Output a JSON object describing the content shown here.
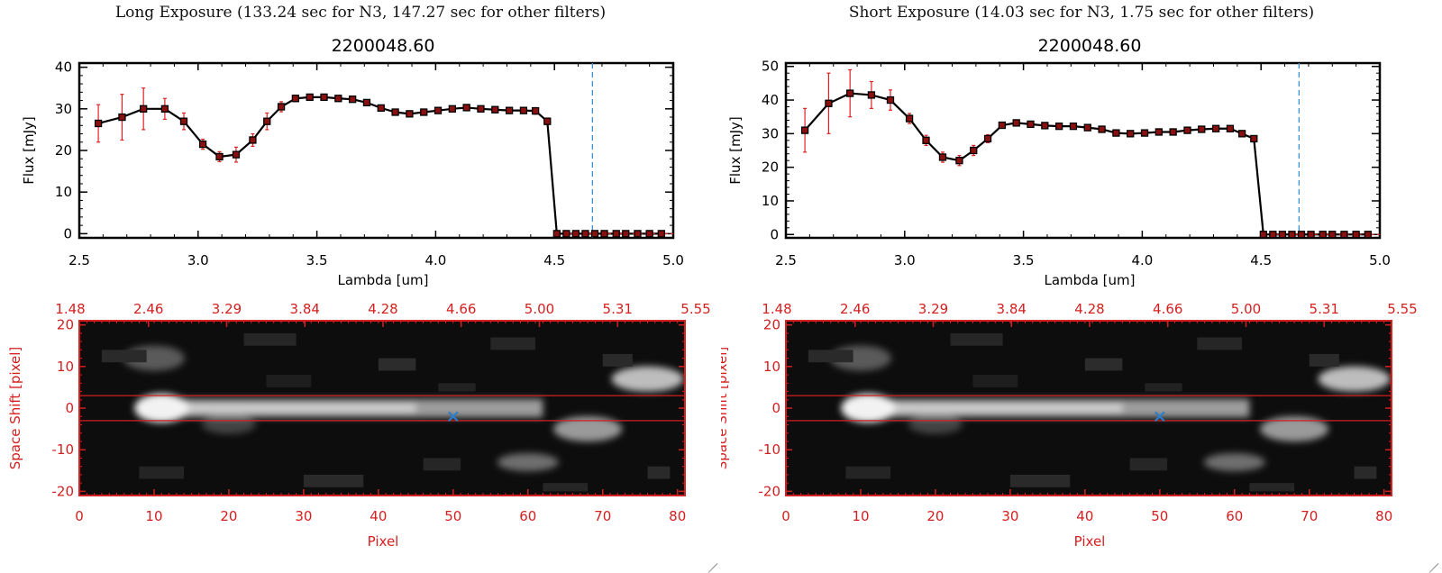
{
  "panels": [
    {
      "id": "long",
      "window_title": "Long Exposure (133.24 sec for N3, 147.27 sec for other filters)",
      "spectrum": {
        "title": "2200048.60",
        "xlabel": "Lambda [um]",
        "ylabel": "Flux [mJy]",
        "xlim": [
          2.5,
          5.0
        ],
        "ylim": [
          -1,
          41
        ],
        "xticks": [
          "2.5",
          "3.0",
          "3.5",
          "4.0",
          "4.5",
          "5.0"
        ],
        "yticks": [
          "0",
          "10",
          "20",
          "30",
          "40"
        ]
      },
      "image": {
        "bottom_xlabel": "Pixel",
        "ylabel": "Space Shift [pixel]",
        "bottom_ticks": [
          "0",
          "10",
          "20",
          "30",
          "40",
          "50",
          "60",
          "70",
          "80"
        ],
        "top_ticks": [
          "1.48",
          "2.46",
          "3.29",
          "3.84",
          "4.28",
          "4.66",
          "5.00",
          "5.31",
          "5.55"
        ],
        "yticks": [
          "20",
          "10",
          "0",
          "-10",
          "-20"
        ]
      }
    },
    {
      "id": "short",
      "window_title": "Short Exposure (14.03 sec for N3, 1.75 sec for other filters)",
      "spectrum": {
        "title": "2200048.60",
        "xlabel": "Lambda [um]",
        "ylabel": "Flux [mJy]",
        "xlim": [
          2.5,
          5.0
        ],
        "ylim": [
          -1,
          51
        ],
        "xticks": [
          "2.5",
          "3.0",
          "3.5",
          "4.0",
          "4.5",
          "5.0"
        ],
        "yticks": [
          "0",
          "10",
          "20",
          "30",
          "40",
          "50"
        ]
      },
      "image": {
        "bottom_xlabel": "Pixel",
        "ylabel": "Space Shift [pixel]",
        "bottom_ticks": [
          "0",
          "10",
          "20",
          "30",
          "40",
          "50",
          "60",
          "70",
          "80"
        ],
        "top_ticks": [
          "1.48",
          "2.46",
          "3.29",
          "3.84",
          "4.28",
          "4.66",
          "5.00",
          "5.31",
          "5.55"
        ],
        "yticks": [
          "20",
          "10",
          "0",
          "-10",
          "-20"
        ]
      }
    }
  ],
  "colors": {
    "axis_red": "#d42020",
    "marker_fill": "#8a1010",
    "errorbar": "#e02020",
    "line": "#000000",
    "dashed_marker": "#3a8fd8",
    "source_marker": "#2a7fd0",
    "extraction_lines": "#d42020"
  },
  "chart_data": [
    {
      "type": "line",
      "panel": "long",
      "title": "2200048.60",
      "xlabel": "Lambda [um]",
      "ylabel": "Flux [mJy]",
      "xlim": [
        2.5,
        5.0
      ],
      "ylim": [
        -1,
        41
      ],
      "grid": false,
      "vline": 4.66,
      "series": [
        {
          "x": [
            2.58,
            2.68,
            2.77,
            2.86,
            2.94,
            3.02,
            3.09,
            3.16,
            3.23,
            3.29,
            3.35,
            3.41,
            3.47,
            3.53,
            3.59,
            3.65,
            3.71,
            3.77,
            3.83,
            3.89,
            3.95,
            4.01,
            4.07,
            4.13,
            4.19,
            4.25,
            4.31,
            4.37,
            4.42,
            4.47,
            4.51,
            4.55,
            4.59,
            4.63,
            4.67,
            4.71,
            4.76,
            4.8,
            4.85,
            4.9,
            4.95
          ],
          "y": [
            26.5,
            28,
            30,
            30,
            27,
            21.5,
            18.5,
            19,
            22.5,
            27,
            30.5,
            32.5,
            32.8,
            32.8,
            32.5,
            32.3,
            31.5,
            30.2,
            29.2,
            28.8,
            29.2,
            29.6,
            30,
            30.3,
            30,
            29.8,
            29.6,
            29.6,
            29.5,
            27,
            0,
            0,
            0,
            0,
            0,
            0,
            0,
            0,
            0,
            0,
            0
          ],
          "err": [
            4.5,
            5.5,
            5,
            2.5,
            2,
            1.2,
            1.2,
            1.8,
            1.5,
            2,
            1.2,
            0.8,
            0.5,
            0.5,
            0.5,
            0.5,
            0.5,
            0.5,
            0.5,
            0.5,
            0.5,
            0.5,
            0.5,
            0.5,
            0.5,
            0.5,
            0.5,
            0.5,
            0.8,
            0.8,
            0,
            0,
            0,
            0,
            0,
            0,
            0,
            0,
            0,
            0,
            0
          ]
        }
      ]
    },
    {
      "type": "line",
      "panel": "short",
      "title": "2200048.60",
      "xlabel": "Lambda [um]",
      "ylabel": "Flux [mJy]",
      "xlim": [
        2.5,
        5.0
      ],
      "ylim": [
        -1,
        51
      ],
      "grid": false,
      "vline": 4.66,
      "series": [
        {
          "x": [
            2.58,
            2.68,
            2.77,
            2.86,
            2.94,
            3.02,
            3.09,
            3.16,
            3.23,
            3.29,
            3.35,
            3.41,
            3.47,
            3.53,
            3.59,
            3.65,
            3.71,
            3.77,
            3.83,
            3.89,
            3.95,
            4.01,
            4.07,
            4.13,
            4.19,
            4.25,
            4.31,
            4.37,
            4.42,
            4.47,
            4.51,
            4.55,
            4.59,
            4.63,
            4.67,
            4.71,
            4.76,
            4.8,
            4.85,
            4.9,
            4.95
          ],
          "y": [
            31,
            39,
            42,
            41.5,
            40,
            34.5,
            28,
            23,
            22,
            25,
            28.5,
            32.5,
            33.2,
            32.8,
            32.4,
            32.2,
            32.2,
            31.8,
            31.3,
            30.2,
            30,
            30.2,
            30.5,
            30.5,
            31,
            31.3,
            31.5,
            31.5,
            30,
            28.5,
            0,
            0,
            0,
            0,
            0,
            0,
            0,
            0,
            0,
            0,
            0
          ],
          "err": [
            6.5,
            9,
            7,
            4,
            3,
            1.5,
            1.5,
            1.5,
            1.5,
            1.5,
            1.2,
            0.8,
            0.5,
            0.5,
            0.5,
            0.5,
            0.5,
            0.5,
            0.5,
            0.5,
            0.5,
            0.5,
            0.5,
            0.5,
            0.5,
            0.5,
            0.5,
            0.5,
            0.8,
            0.8,
            0,
            0,
            0,
            0,
            0,
            0,
            0,
            0,
            0,
            0,
            0
          ]
        }
      ]
    },
    {
      "type": "heatmap",
      "panel": "long",
      "xlabel": "Pixel",
      "ylabel": "Space Shift [pixel]",
      "xlim": [
        0,
        81
      ],
      "ylim": [
        -21,
        21
      ],
      "top_axis_ticks": [
        "1.48",
        "2.46",
        "3.29",
        "3.84",
        "4.28",
        "4.66",
        "5.00",
        "5.31",
        "5.55"
      ],
      "extraction_window": [
        -3,
        3
      ],
      "source_marker": [
        50,
        -2
      ]
    },
    {
      "type": "heatmap",
      "panel": "short",
      "xlabel": "Pixel",
      "ylabel": "Space Shift [pixel]",
      "xlim": [
        0,
        81
      ],
      "ylim": [
        -21,
        21
      ],
      "top_axis_ticks": [
        "1.48",
        "2.46",
        "3.29",
        "3.84",
        "4.28",
        "4.66",
        "5.00",
        "5.31",
        "5.55"
      ],
      "extraction_window": [
        -3,
        3
      ],
      "source_marker": [
        50,
        -2
      ]
    }
  ]
}
